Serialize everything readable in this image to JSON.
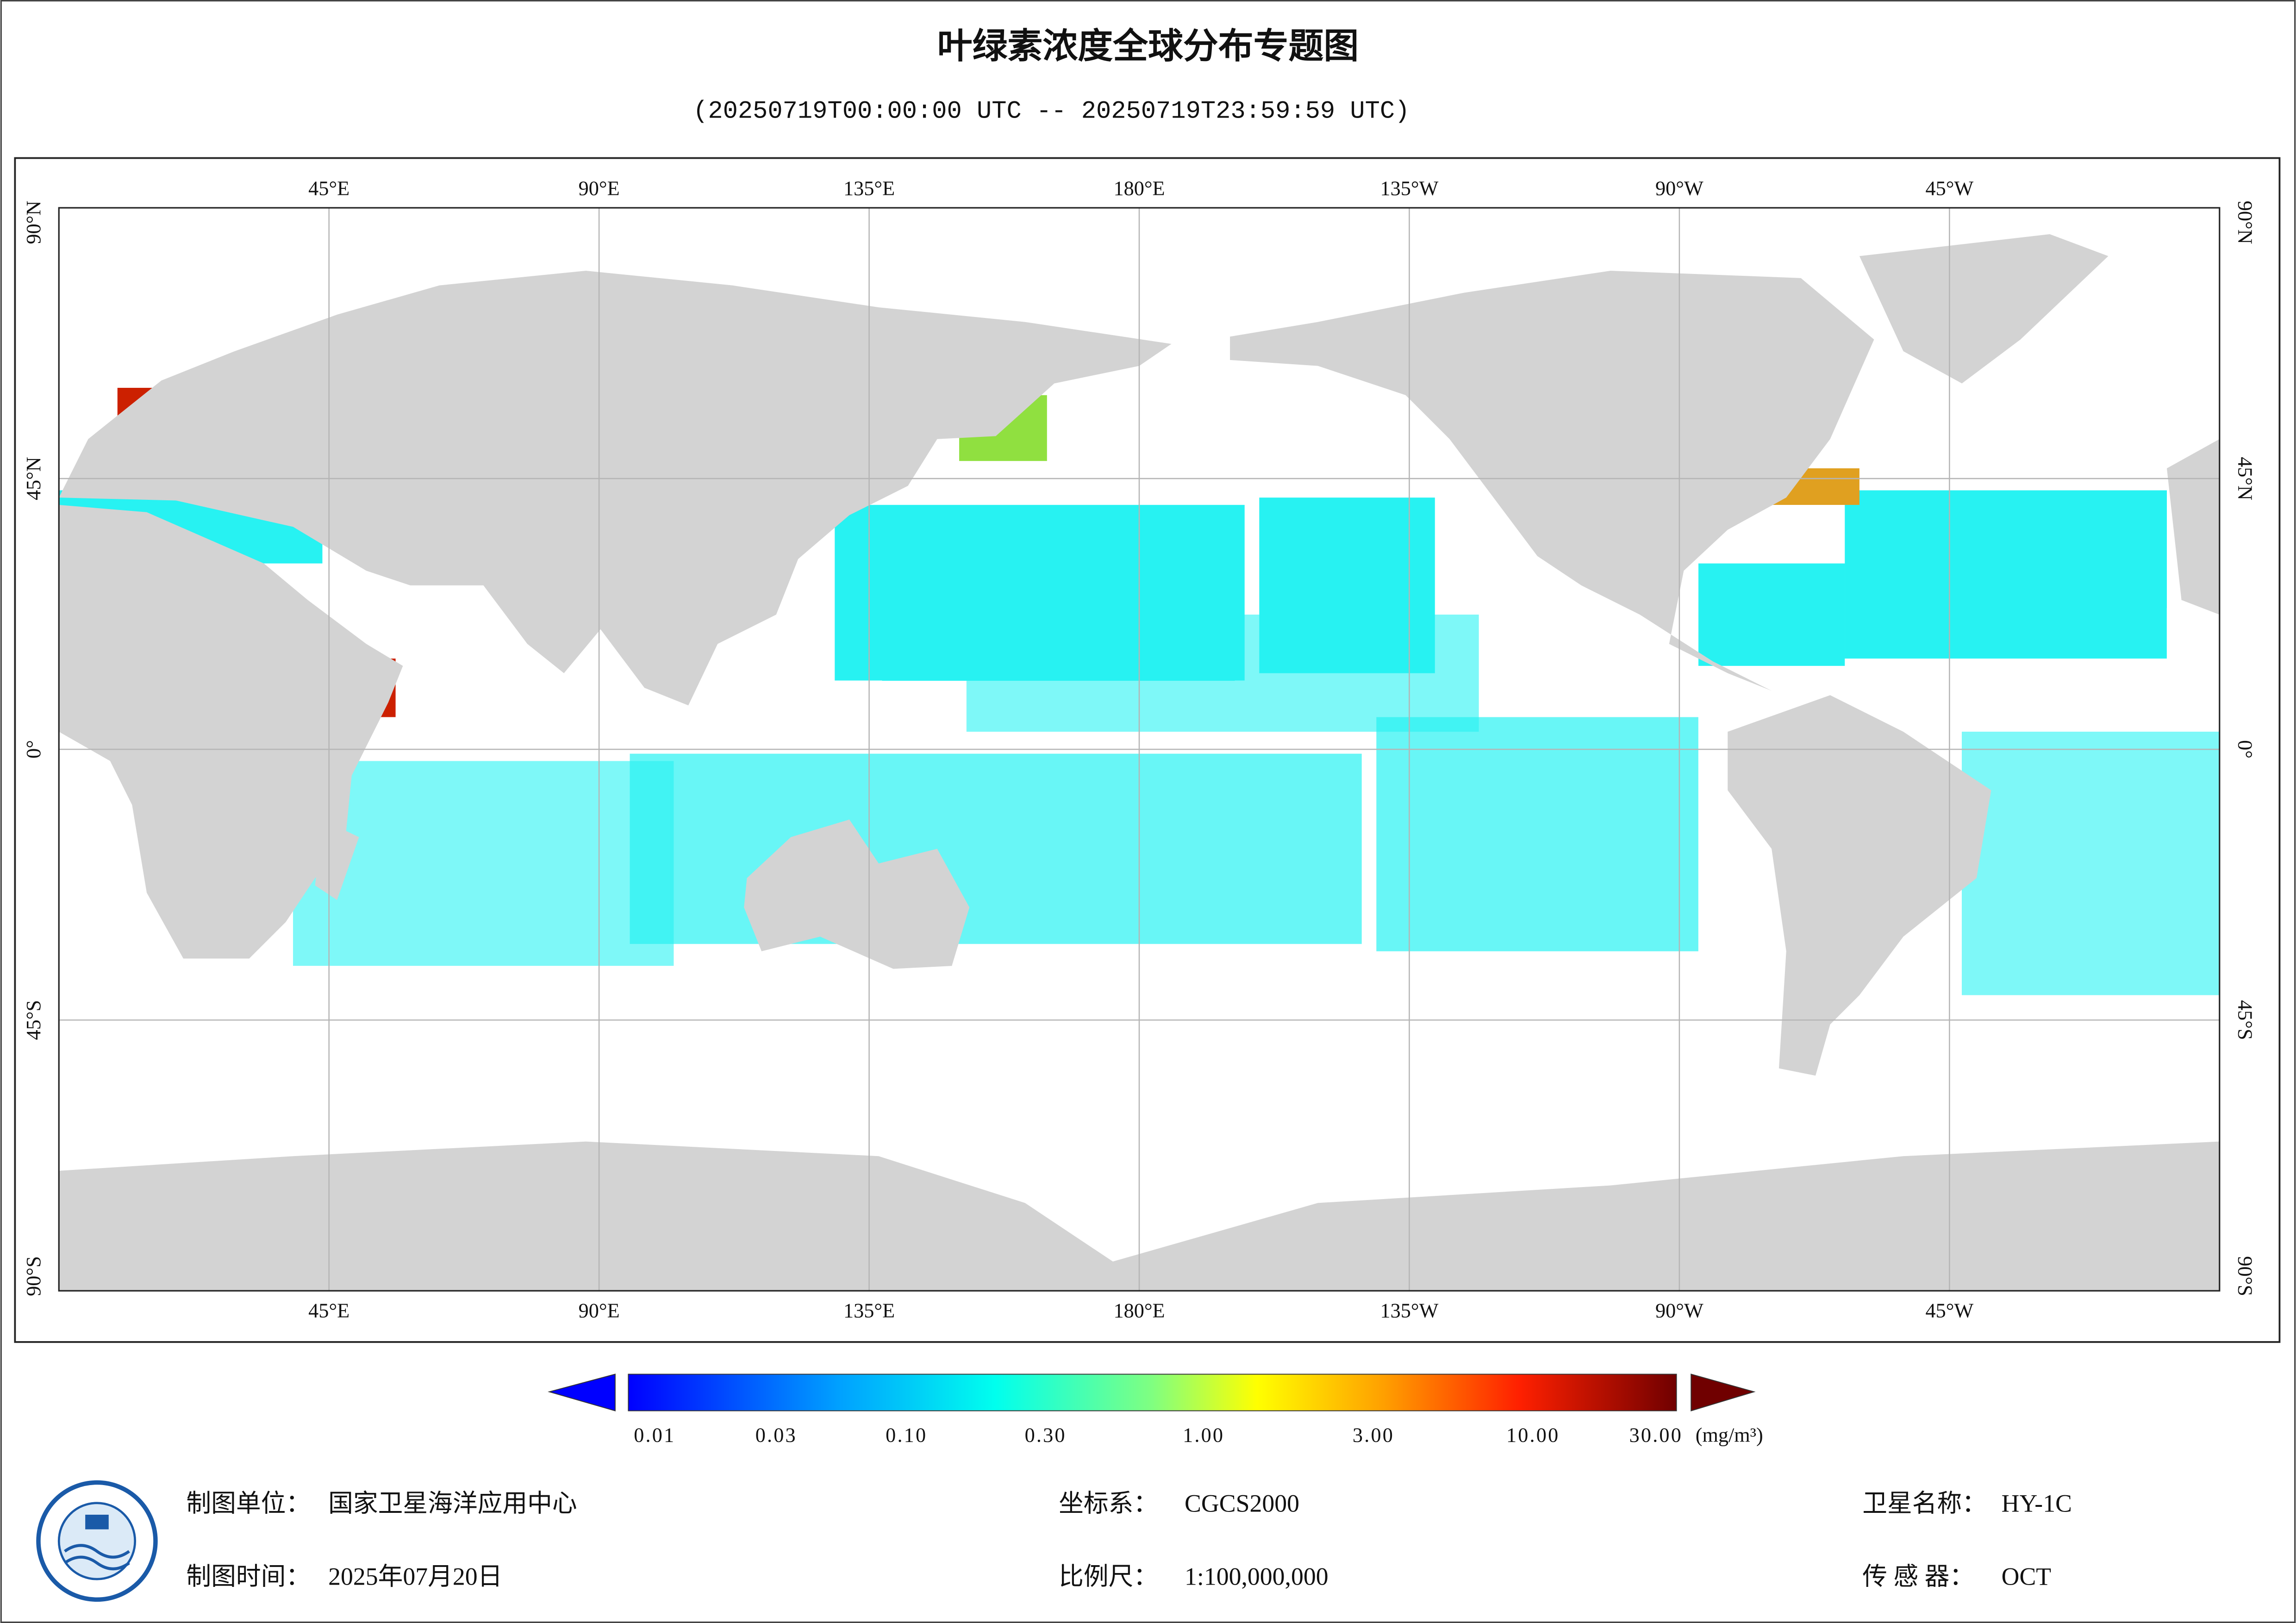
{
  "header": {
    "title": "叶绿素浓度全球分布专题图",
    "subtitle": "(20250719T00:00:00 UTC -- 20250719T23:59:59 UTC)"
  },
  "map": {
    "lon_labels": [
      "45°E",
      "90°E",
      "135°E",
      "180°E",
      "135°W",
      "90°W",
      "45°W"
    ],
    "lat_labels": [
      "90°N",
      "45°N",
      "0°",
      "45°S",
      "90°S"
    ]
  },
  "legend": {
    "labels": [
      "0.01",
      "0.03",
      "0.10",
      "0.30",
      "1.00",
      "3.00",
      "10.00",
      "30.00"
    ],
    "unit": "(mg/m³)"
  },
  "footer": {
    "items": [
      {
        "key": "制图单位：",
        "value": "国家卫星海洋应用中心"
      },
      {
        "key": "制图时间：",
        "value": "2025年07月20日"
      },
      {
        "key": "坐标系：",
        "value": "CGCS2000"
      },
      {
        "key": "比例尺：",
        "value": "1:100,000,000"
      },
      {
        "key": "卫星名称：",
        "value": "HY-1C"
      },
      {
        "key": "传 感 器：",
        "value": "OCT"
      }
    ]
  }
}
